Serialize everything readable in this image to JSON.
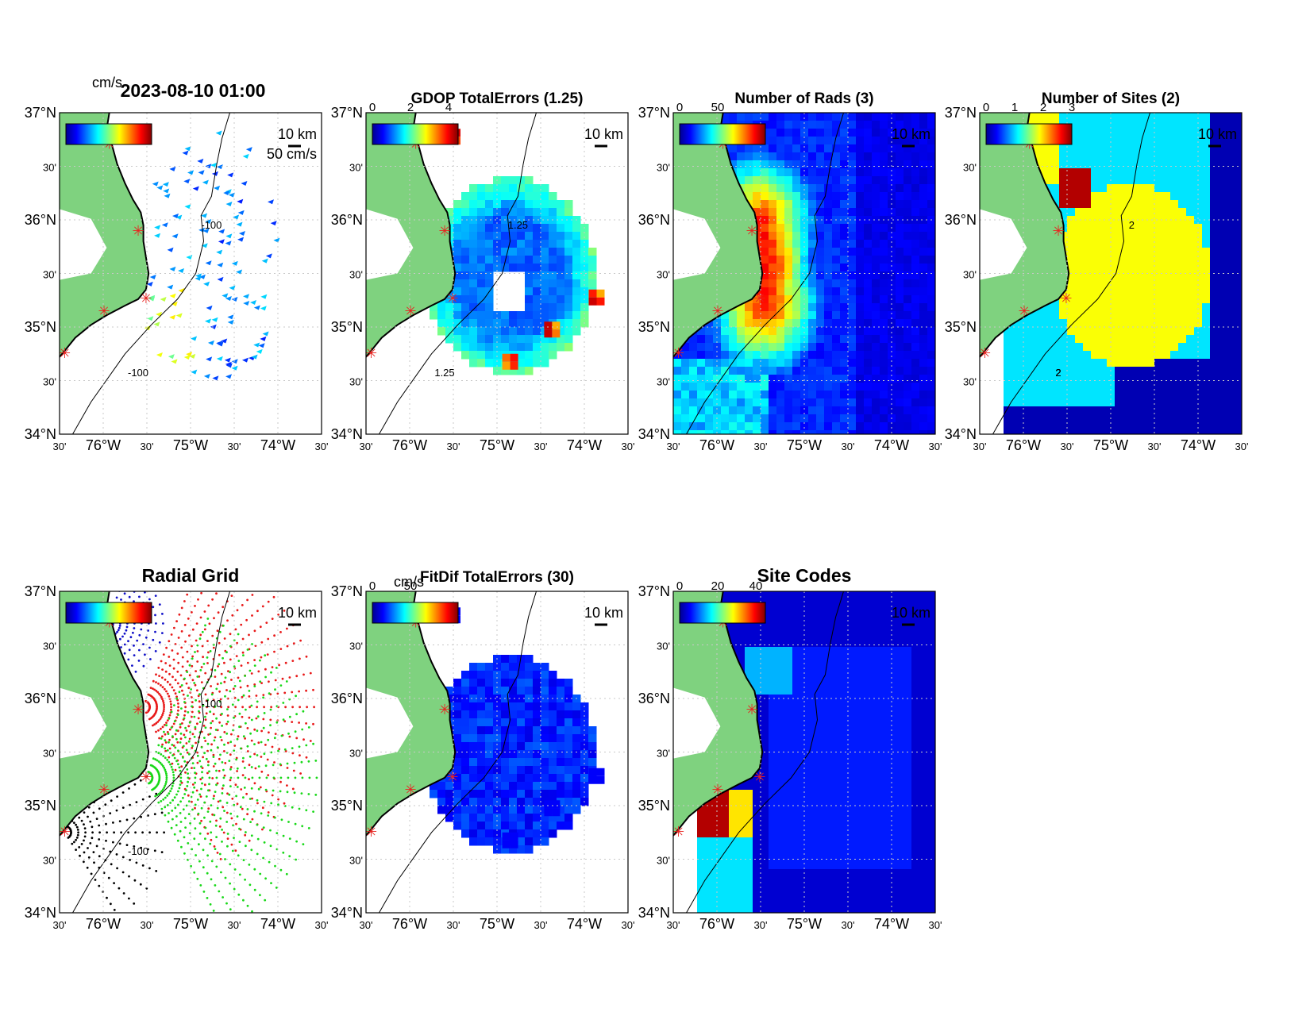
{
  "figure_title": "",
  "colors": {
    "land": "#7fd27f",
    "axis": "#000000",
    "grid": "#c8c8c8",
    "site_marker": "#e8231f",
    "radial_site1": "#1010c8",
    "radial_site2": "#e81818",
    "radial_site3": "#18d818",
    "radial_site4": "#000000"
  },
  "axes_ticks": {
    "lat": [
      "37°N",
      "30'",
      "36°N",
      "30'",
      "35°N",
      "30'",
      "34°N"
    ],
    "lon": [
      "30'",
      "76°W",
      "30'",
      "75°W",
      "30'",
      "74°W",
      "30'"
    ]
  },
  "panels": [
    {
      "id": "totals",
      "title": "2023-08-10 01:00",
      "colorbar_unit": "cm/s",
      "colorbar_ticks": [],
      "scale_label": "50 cm/s",
      "distance_label": "10 km",
      "contour_labels": [
        "-100",
        "-100"
      ],
      "field": "vectors"
    },
    {
      "id": "gdop",
      "title": "GDOP TotalErrors (1.25)",
      "colorbar_unit": "",
      "colorbar_ticks": [
        "0",
        "2",
        "4"
      ],
      "distance_label": "10 km",
      "contour_labels": [
        "1.25",
        "1.25"
      ],
      "field": "gdop"
    },
    {
      "id": "nrads",
      "title": "Number of Rads (3)",
      "colorbar_unit": "",
      "colorbar_ticks": [
        "0",
        "50"
      ],
      "distance_label": "10 km",
      "contour_labels": [],
      "field": "nrads"
    },
    {
      "id": "nsites",
      "title": "Number of Sites (2)",
      "colorbar_unit": "",
      "colorbar_ticks": [
        "0",
        "1",
        "2",
        "3"
      ],
      "distance_label": "10 km",
      "contour_labels": [
        "2",
        "2",
        "2",
        "2",
        "2"
      ],
      "field": "nsites"
    },
    {
      "id": "radgrid",
      "title": "Radial Grid",
      "colorbar_unit": "",
      "colorbar_ticks": [],
      "distance_label": "10 km",
      "contour_labels": [
        "-100",
        "-100"
      ],
      "field": "radgrid"
    },
    {
      "id": "fitdif",
      "title": "FitDif TotalErrors (30)",
      "colorbar_unit": "cm/s",
      "colorbar_ticks": [
        "0",
        "50"
      ],
      "distance_label": "10 km",
      "contour_labels": [],
      "field": "fitdif"
    },
    {
      "id": "sitecodes",
      "title": "Site Codes",
      "colorbar_unit": "",
      "colorbar_ticks": [
        "0",
        "20",
        "40"
      ],
      "distance_label": "10 km",
      "contour_labels": [],
      "field": "sitecodes"
    }
  ]
}
